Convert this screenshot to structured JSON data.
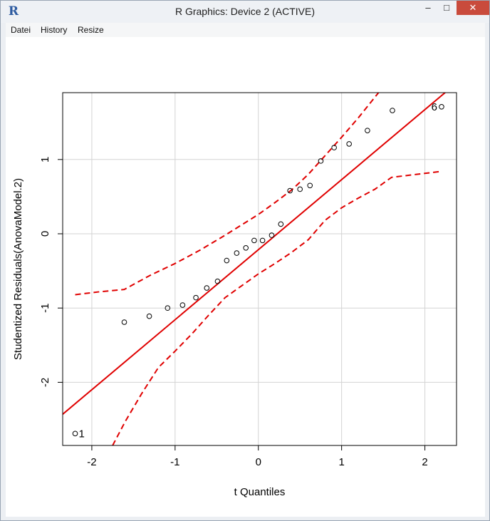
{
  "window": {
    "title": "R Graphics: Device 2 (ACTIVE)",
    "icon": "r-logo-icon",
    "controls": {
      "minimize": "–",
      "maximize": "□",
      "close": "✕"
    }
  },
  "menu": {
    "items": [
      "Datei",
      "History",
      "Resize"
    ]
  },
  "colors": {
    "line": "#e00000",
    "grid": "#d3d3d3",
    "points": "#000000"
  },
  "chart_data": {
    "type": "scatter",
    "xlabel": "t Quantiles",
    "ylabel": "Studentized Residuals(AnovaModel.2)",
    "xlim": [
      -2.35,
      2.38
    ],
    "ylim": [
      -2.85,
      1.9
    ],
    "xticks": [
      -2,
      -1,
      0,
      1,
      2
    ],
    "yticks": [
      -2,
      -1,
      0,
      1
    ],
    "xtick_labels": [
      "-2",
      "-1",
      "0",
      "1",
      "2"
    ],
    "ytick_labels": [
      "-2",
      "-1",
      "0",
      "1"
    ],
    "grid": true,
    "points": {
      "x": [
        -2.2,
        -1.61,
        -1.31,
        -1.09,
        -0.91,
        -0.75,
        -0.62,
        -0.49,
        -0.38,
        -0.26,
        -0.15,
        -0.05,
        0.05,
        0.16,
        0.27,
        0.38,
        0.5,
        0.62,
        0.75,
        0.91,
        1.09,
        1.31,
        1.61,
        2.2
      ],
      "y": [
        -2.69,
        -1.19,
        -1.11,
        -1.0,
        -0.96,
        -0.86,
        -0.73,
        -0.64,
        -0.36,
        -0.26,
        -0.19,
        -0.09,
        -0.09,
        -0.02,
        0.13,
        0.58,
        0.6,
        0.65,
        0.98,
        1.16,
        1.21,
        1.39,
        1.66,
        1.71
      ]
    },
    "annotations": [
      {
        "text": "1",
        "x": -2.2,
        "y": -2.69,
        "side": "right"
      },
      {
        "text": "6",
        "x": 2.2,
        "y": 1.71,
        "side": "left"
      }
    ],
    "reference_line": {
      "x": [
        -2.35,
        2.38
      ],
      "y": [
        -2.43,
        2.03
      ]
    },
    "confidence_band": {
      "upper": {
        "x": [
          -2.2,
          -1.9,
          -1.61,
          -1.3,
          -1.0,
          -0.7,
          -0.4,
          -0.2,
          0.0,
          0.2,
          0.4,
          0.6,
          0.8,
          1.0,
          1.2,
          1.4,
          1.6,
          1.8
        ],
        "y": [
          -0.82,
          -0.78,
          -0.75,
          -0.56,
          -0.4,
          -0.22,
          -0.02,
          0.12,
          0.26,
          0.42,
          0.59,
          0.8,
          1.05,
          1.3,
          1.56,
          1.84,
          2.12,
          2.45
        ]
      },
      "lower": {
        "x": [
          -1.75,
          -1.6,
          -1.4,
          -1.2,
          -1.0,
          -0.8,
          -0.6,
          -0.4,
          -0.2,
          0.0,
          0.2,
          0.4,
          0.6,
          0.8,
          1.0,
          1.2,
          1.4,
          1.6,
          1.9,
          2.2
        ],
        "y": [
          -2.85,
          -2.53,
          -2.15,
          -1.8,
          -1.58,
          -1.35,
          -1.1,
          -0.86,
          -0.7,
          -0.54,
          -0.4,
          -0.25,
          -0.08,
          0.18,
          0.35,
          0.48,
          0.6,
          0.76,
          0.8,
          0.84
        ]
      }
    }
  }
}
